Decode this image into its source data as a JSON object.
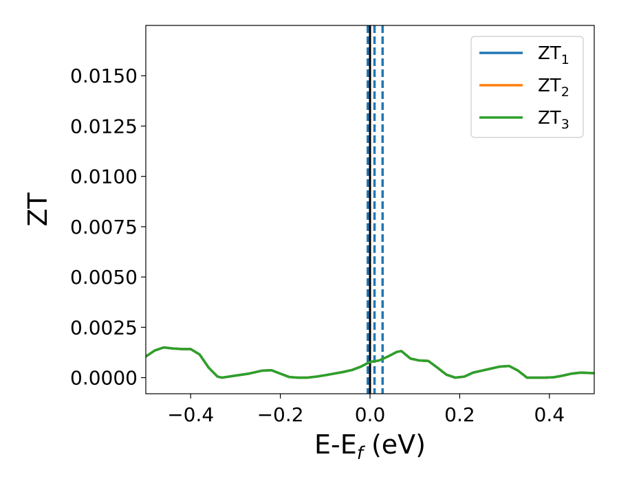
{
  "chart_data": {
    "type": "line",
    "xlabel": "E-E",
    "xlabel_sub": "f",
    "xlabel_suffix": " (eV)",
    "ylabel": "ZT",
    "xlim": [
      -0.5,
      0.5
    ],
    "ylim": [
      -0.0008,
      0.0175
    ],
    "xticks": [
      -0.4,
      -0.2,
      0.0,
      0.2,
      0.4
    ],
    "xtick_labels": [
      "−0.4",
      "−0.2",
      "0.0",
      "0.2",
      "0.4"
    ],
    "yticks": [
      0.0,
      0.0025,
      0.005,
      0.0075,
      0.01,
      0.0125,
      0.015
    ],
    "ytick_labels": [
      "0.0000",
      "0.0025",
      "0.0050",
      "0.0075",
      "0.0100",
      "0.0125",
      "0.0150"
    ],
    "grid": false,
    "legend_position": "top-right",
    "vlines": [
      {
        "x": 0.0,
        "style": "solid",
        "color": "#000000"
      },
      {
        "x": -0.005,
        "style": "dashed",
        "color": "#1f77b4"
      },
      {
        "x": 0.01,
        "style": "dashed",
        "color": "#1f77b4"
      },
      {
        "x": 0.028,
        "style": "dashed",
        "color": "#1f77b4"
      }
    ],
    "series": [
      {
        "name": "ZT",
        "sub": "1",
        "color": "#1f77b4",
        "x": [
          -0.5,
          -0.48,
          -0.46,
          -0.44,
          -0.42,
          -0.4,
          -0.38,
          -0.36,
          -0.34,
          -0.33,
          -0.3,
          -0.27,
          -0.24,
          -0.22,
          -0.2,
          -0.18,
          -0.16,
          -0.14,
          -0.12,
          -0.1,
          -0.08,
          -0.06,
          -0.04,
          -0.02,
          0.0,
          0.02,
          0.04,
          0.06,
          0.07,
          0.09,
          0.11,
          0.13,
          0.15,
          0.17,
          0.19,
          0.21,
          0.23,
          0.25,
          0.27,
          0.29,
          0.31,
          0.33,
          0.35,
          0.37,
          0.39,
          0.41,
          0.43,
          0.45,
          0.47,
          0.5
        ],
        "y": [
          0.00105,
          0.00135,
          0.0015,
          0.00145,
          0.00142,
          0.00142,
          0.00115,
          0.0005,
          5e-05,
          0.0,
          0.0001,
          0.0002,
          0.00035,
          0.00037,
          0.0002,
          3e-05,
          0.0,
          0.0,
          5e-05,
          0.00012,
          0.0002,
          0.00028,
          0.00038,
          0.00055,
          0.00078,
          0.00085,
          0.00105,
          0.00128,
          0.00132,
          0.00095,
          0.00085,
          0.00083,
          0.0005,
          0.00015,
          0.0,
          5e-05,
          0.00025,
          0.00035,
          0.00045,
          0.00055,
          0.00058,
          0.00035,
          0.0,
          0.0,
          0.0,
          2e-05,
          0.0001,
          0.0002,
          0.00025,
          0.00022
        ]
      },
      {
        "name": "ZT",
        "sub": "2",
        "color": "#ff7f0e",
        "x": [
          -0.5,
          -0.48,
          -0.46,
          -0.44,
          -0.42,
          -0.4,
          -0.38,
          -0.36,
          -0.34,
          -0.33,
          -0.3,
          -0.27,
          -0.24,
          -0.22,
          -0.2,
          -0.18,
          -0.16,
          -0.14,
          -0.12,
          -0.1,
          -0.08,
          -0.06,
          -0.04,
          -0.02,
          0.0,
          0.02,
          0.04,
          0.06,
          0.07,
          0.09,
          0.11,
          0.13,
          0.15,
          0.17,
          0.19,
          0.21,
          0.23,
          0.25,
          0.27,
          0.29,
          0.31,
          0.33,
          0.35,
          0.37,
          0.39,
          0.41,
          0.43,
          0.45,
          0.47,
          0.5
        ],
        "y": [
          0.00105,
          0.00135,
          0.0015,
          0.00145,
          0.00142,
          0.00142,
          0.00115,
          0.0005,
          5e-05,
          0.0,
          0.0001,
          0.0002,
          0.00035,
          0.00037,
          0.0002,
          3e-05,
          0.0,
          0.0,
          5e-05,
          0.00012,
          0.0002,
          0.00028,
          0.00038,
          0.00055,
          0.00078,
          0.00085,
          0.00105,
          0.00128,
          0.00132,
          0.00095,
          0.00085,
          0.00083,
          0.0005,
          0.00015,
          0.0,
          5e-05,
          0.00025,
          0.00035,
          0.00045,
          0.00055,
          0.00058,
          0.00035,
          0.0,
          0.0,
          0.0,
          2e-05,
          0.0001,
          0.0002,
          0.00025,
          0.00022
        ]
      },
      {
        "name": "ZT",
        "sub": "3",
        "color": "#2ca02c",
        "x": [
          -0.5,
          -0.48,
          -0.46,
          -0.44,
          -0.42,
          -0.4,
          -0.38,
          -0.36,
          -0.34,
          -0.33,
          -0.3,
          -0.27,
          -0.24,
          -0.22,
          -0.2,
          -0.18,
          -0.16,
          -0.14,
          -0.12,
          -0.1,
          -0.08,
          -0.06,
          -0.04,
          -0.02,
          0.0,
          0.02,
          0.04,
          0.06,
          0.07,
          0.09,
          0.11,
          0.13,
          0.15,
          0.17,
          0.19,
          0.21,
          0.23,
          0.25,
          0.27,
          0.29,
          0.31,
          0.33,
          0.35,
          0.37,
          0.39,
          0.41,
          0.43,
          0.45,
          0.47,
          0.5
        ],
        "y": [
          0.00105,
          0.00135,
          0.0015,
          0.00145,
          0.00142,
          0.00142,
          0.00115,
          0.0005,
          5e-05,
          0.0,
          0.0001,
          0.0002,
          0.00035,
          0.00037,
          0.0002,
          3e-05,
          0.0,
          0.0,
          5e-05,
          0.00012,
          0.0002,
          0.00028,
          0.00038,
          0.00055,
          0.00078,
          0.00085,
          0.00105,
          0.00128,
          0.00132,
          0.00095,
          0.00085,
          0.00083,
          0.0005,
          0.00015,
          0.0,
          5e-05,
          0.00025,
          0.00035,
          0.00045,
          0.00055,
          0.00058,
          0.00035,
          0.0,
          0.0,
          0.0,
          2e-05,
          0.0001,
          0.0002,
          0.00025,
          0.00022
        ]
      }
    ]
  }
}
